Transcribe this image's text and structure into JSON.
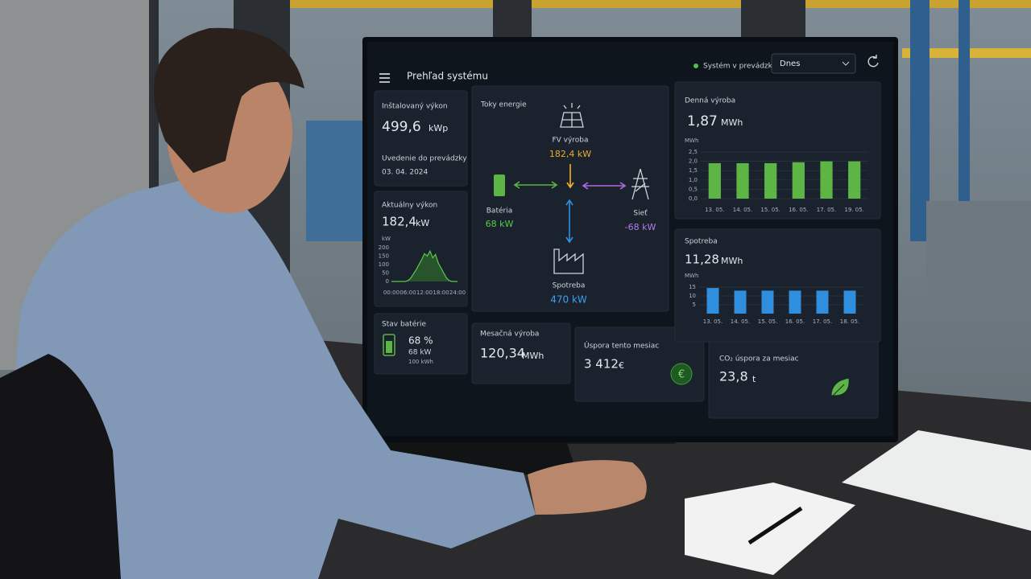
{
  "header": {
    "title": "Prehľad systému",
    "status": "Systém v prevádzke",
    "period": "Dnes"
  },
  "installed": {
    "label": "Inštalovaný výkon",
    "value": "499,6",
    "unit": "kWp",
    "commission_label": "Uvedenie do prevádzky",
    "commission_date": "03. 04. 2024"
  },
  "current": {
    "label": "Aktuálny výkon",
    "value": "182,4",
    "unit": "kW",
    "chart": {
      "axis_unit": "kW",
      "ylim": [
        0,
        200
      ],
      "yticks": [
        0,
        50,
        100,
        150,
        200
      ],
      "xticks": [
        "00:00",
        "06:00",
        "12:00",
        "18:00",
        "24:00"
      ],
      "values": [
        0,
        0,
        0,
        0,
        0,
        0,
        5,
        20,
        45,
        70,
        100,
        130,
        165,
        150,
        180,
        140,
        160,
        110,
        80,
        50,
        20,
        5,
        0,
        0,
        0
      ]
    }
  },
  "battery": {
    "label": "Stav batérie",
    "percent": "68 %",
    "power": "68 kW",
    "capacity": "100 kWh"
  },
  "flows": {
    "title": "Toky energie",
    "pv": {
      "label": "FV výroba",
      "value": "182,4 kW"
    },
    "battery": {
      "label": "Batéria",
      "value": "68 kW"
    },
    "grid": {
      "label": "Sieť",
      "value": "-68 kW"
    },
    "consumption": {
      "label": "Spotreba",
      "value": "470 kW"
    }
  },
  "monthly": {
    "label": "Mesačná výroba",
    "value": "120,34",
    "unit": "MWh"
  },
  "savings": {
    "label": "Úspora tento mesiac",
    "value": "3 412",
    "unit": "€"
  },
  "co2": {
    "label": "CO₂ úspora za mesiac",
    "value": "23,8",
    "unit": "t"
  },
  "daily": {
    "label": "Denná výroba",
    "value": "1,87",
    "unit": "MWh",
    "axis_unit": "MWh",
    "ylim": [
      0,
      2.5
    ],
    "yticks": [
      {
        "value": 0,
        "label": "0,0"
      },
      {
        "value": 0.5,
        "label": "0,5"
      },
      {
        "value": 1,
        "label": "1,0"
      },
      {
        "value": 1.5,
        "label": "1,5"
      },
      {
        "value": 2,
        "label": "2,0"
      },
      {
        "value": 2.5,
        "label": "2,5"
      }
    ],
    "categories": [
      "13. 05.",
      "14. 05.",
      "15. 05.",
      "16. 05.",
      "17. 05.",
      "19. 05."
    ],
    "values": [
      1.9,
      1.9,
      1.9,
      1.95,
      2.0,
      2.0
    ],
    "color": "#5cb544"
  },
  "consumption": {
    "label": "Spotreba",
    "value": "11,28",
    "unit": "MWh",
    "axis_unit": "MWh",
    "ylim": [
      0,
      15
    ],
    "yticks": [
      5,
      10,
      15
    ],
    "categories": [
      "13. 05.",
      "14. 05.",
      "15. 05.",
      "16. 05.",
      "17. 05.",
      "18. 05."
    ],
    "values": [
      14.5,
      13,
      13,
      13,
      13,
      13
    ],
    "color": "#2f8fde"
  }
}
